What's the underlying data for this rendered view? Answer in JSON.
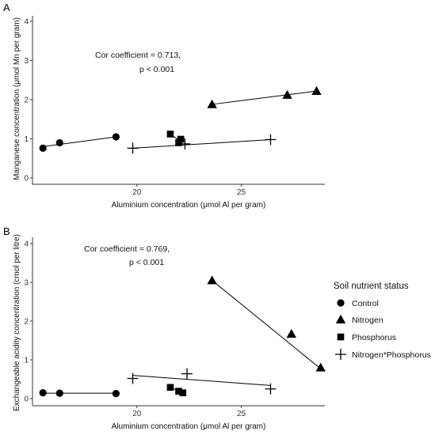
{
  "chart_data": [
    {
      "type": "scatter",
      "panel_label": "A",
      "xlabel": "Aluminium concentration (μmol Al per gram)",
      "ylabel": "Manganese concentration (μmol Mn per gram)",
      "xlim": [
        15,
        29
      ],
      "ylim": [
        0,
        4
      ],
      "x_ticks": [
        20,
        25
      ],
      "y_ticks": [
        0,
        1,
        2,
        3,
        4
      ],
      "annotation": [
        "Cor coefficient = 0.713,",
        "p < 0.001"
      ],
      "grid": false,
      "series": [
        {
          "name": "Control",
          "marker": "circle",
          "points": [
            [
              15.5,
              0.76
            ],
            [
              16.3,
              0.9
            ],
            [
              19.0,
              1.05
            ]
          ],
          "fit": [
            [
              15.5,
              0.8
            ],
            [
              19.0,
              1.05
            ]
          ]
        },
        {
          "name": "Nitrogen",
          "marker": "triangle",
          "points": [
            [
              23.6,
              1.88
            ],
            [
              27.2,
              2.12
            ],
            [
              28.6,
              2.22
            ]
          ],
          "fit": [
            [
              23.6,
              1.88
            ],
            [
              28.6,
              2.22
            ]
          ]
        },
        {
          "name": "Phosphorus",
          "marker": "square",
          "points": [
            [
              21.6,
              1.12
            ],
            [
              22.0,
              0.9
            ],
            [
              22.1,
              0.99
            ]
          ],
          "fit": [
            [
              21.6,
              1.12
            ],
            [
              22.1,
              0.93
            ]
          ]
        },
        {
          "name": "Nitrogen*Phosphorus",
          "marker": "plus",
          "points": [
            [
              19.8,
              0.76
            ],
            [
              22.3,
              0.87
            ],
            [
              26.4,
              0.98
            ]
          ],
          "fit": [
            [
              19.8,
              0.76
            ],
            [
              26.4,
              0.98
            ]
          ]
        }
      ]
    },
    {
      "type": "scatter",
      "panel_label": "B",
      "xlabel": "Aluminium concentration (μmol Al per gram)",
      "ylabel": "Exchangeable acidity concentration (cmol per litre)",
      "xlim": [
        15,
        29
      ],
      "ylim": [
        0,
        4
      ],
      "x_ticks": [
        20,
        25
      ],
      "y_ticks": [
        0,
        1,
        2,
        3,
        4
      ],
      "annotation": [
        "Cor coefficient = 0.769,",
        "p < 0.001"
      ],
      "grid": false,
      "series": [
        {
          "name": "Control",
          "marker": "circle",
          "points": [
            [
              15.5,
              0.15
            ],
            [
              16.3,
              0.14
            ],
            [
              19.0,
              0.13
            ]
          ],
          "fit": [
            [
              15.5,
              0.14
            ],
            [
              19.0,
              0.14
            ]
          ]
        },
        {
          "name": "Nitrogen",
          "marker": "triangle",
          "points": [
            [
              23.6,
              3.05
            ],
            [
              27.4,
              1.67
            ],
            [
              28.8,
              0.8
            ]
          ],
          "fit": [
            [
              23.6,
              3.05
            ],
            [
              28.8,
              0.77
            ]
          ]
        },
        {
          "name": "Phosphorus",
          "marker": "square",
          "points": [
            [
              21.6,
              0.29
            ],
            [
              22.0,
              0.19
            ],
            [
              22.2,
              0.15
            ]
          ],
          "fit": [
            [
              21.6,
              0.29
            ],
            [
              22.2,
              0.16
            ]
          ]
        },
        {
          "name": "Nitrogen*Phosphorus",
          "marker": "plus",
          "points": [
            [
              19.8,
              0.52
            ],
            [
              22.4,
              0.64
            ],
            [
              26.4,
              0.25
            ]
          ],
          "fit": [
            [
              19.8,
              0.6
            ],
            [
              26.4,
              0.34
            ]
          ]
        }
      ]
    }
  ],
  "legend": {
    "title": "Soil nutrient status",
    "position": "right",
    "items": [
      {
        "label": "Control",
        "marker": "circle"
      },
      {
        "label": "Nitrogen",
        "marker": "triangle"
      },
      {
        "label": "Phosphorus",
        "marker": "square"
      },
      {
        "label": "Nitrogen*Phosphorus",
        "marker": "plus"
      }
    ]
  }
}
